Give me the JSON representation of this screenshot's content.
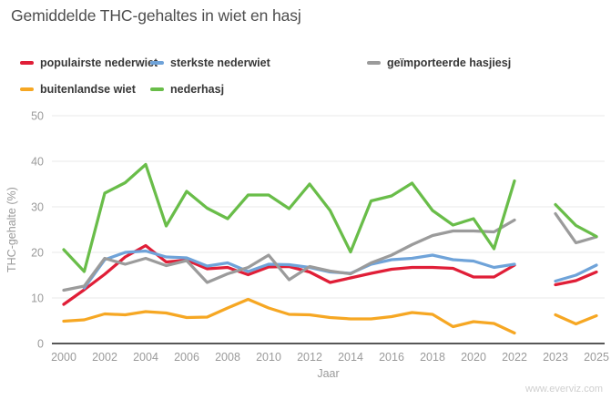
{
  "title": "Gemiddelde THC-gehaltes in wiet en hasj",
  "watermark": "www.everviz.com",
  "chart_data": {
    "type": "line",
    "title": "Gemiddelde THC-gehaltes in wiet en hasj",
    "xlabel": "Jaar",
    "ylabel": "THC-gehalte (%)",
    "ylim": [
      0,
      50
    ],
    "yticks": [
      0,
      10,
      20,
      30,
      40,
      50
    ],
    "ytick_labels": [
      "0",
      "10",
      "20",
      "30",
      "40",
      "50"
    ],
    "xticklabels": [
      "2000",
      "2002",
      "2004",
      "2006",
      "2008",
      "2010",
      "2012",
      "2014",
      "2016",
      "2018",
      "2020",
      "2022",
      "2023",
      "2025"
    ],
    "grid": "horizontal",
    "legend_position": "top-left",
    "gap_between": [
      2022,
      2023
    ],
    "years": [
      2000,
      2001,
      2002,
      2003,
      2004,
      2005,
      2006,
      2007,
      2008,
      2009,
      2010,
      2011,
      2012,
      2013,
      2014,
      2015,
      2016,
      2017,
      2018,
      2019,
      2020,
      2021,
      2022,
      2023,
      2024,
      2025
    ],
    "series": [
      {
        "name": "populairste nederwiet",
        "color": "#e01e37",
        "values": [
          8.6,
          11.8,
          15.2,
          19,
          21.5,
          17.9,
          18.3,
          16.4,
          16.7,
          15.1,
          16.8,
          16.9,
          15.7,
          13.4,
          14.4,
          15.4,
          16.3,
          16.7,
          16.7,
          16.5,
          14.6,
          14.6,
          17.2,
          12.9,
          13.8,
          15.7
        ]
      },
      {
        "name": "sterkste nederwiet",
        "color": "#6fa3d9",
        "values": [
          null,
          12.2,
          18.4,
          20,
          20.3,
          19,
          18.8,
          17,
          17.7,
          15.8,
          17.4,
          17.3,
          16.7,
          15.7,
          15.4,
          17.4,
          18.4,
          18.7,
          19.4,
          18.4,
          18.1,
          16.7,
          17.4,
          13.7,
          15,
          17.2
        ]
      },
      {
        "name": "geïmporteerde hasjiesj",
        "color": "#9b9b9b",
        "values": [
          11.7,
          12.6,
          18.7,
          17.4,
          18.7,
          17.1,
          18.2,
          13.4,
          15.3,
          16.7,
          19.4,
          14,
          16.9,
          15.9,
          15.3,
          17.7,
          19.4,
          21.7,
          23.7,
          24.7,
          24.7,
          24.5,
          27.1,
          28.5,
          22.1,
          23.4
        ]
      },
      {
        "name": "buitenlandse wiet",
        "color": "#f6a723",
        "values": [
          4.9,
          5.2,
          6.5,
          6.3,
          7,
          6.7,
          5.7,
          5.8,
          7.8,
          9.7,
          7.8,
          6.4,
          6.3,
          5.7,
          5.4,
          5.4,
          5.9,
          6.8,
          6.4,
          3.7,
          4.8,
          4.4,
          2.3,
          6.3,
          4.3,
          6.1
        ]
      },
      {
        "name": "nederhasj",
        "color": "#69bd49",
        "values": [
          20.6,
          15.8,
          33,
          35.3,
          39.3,
          25.8,
          33.4,
          29.7,
          27.4,
          32.6,
          32.6,
          29.6,
          35,
          29.2,
          20.1,
          31.3,
          32.4,
          35.2,
          29.2,
          26,
          27.4,
          20.8,
          35.7,
          30.5,
          25.9,
          23.5
        ]
      }
    ],
    "colors": {
      "grid": "#e8e8e8",
      "axis_line": "#3f3f3f",
      "tick_label": "#9a9a9a",
      "title_text": "#4d4d4d",
      "legend_text": "#373737",
      "watermark_text": "#cfcfcf"
    }
  }
}
